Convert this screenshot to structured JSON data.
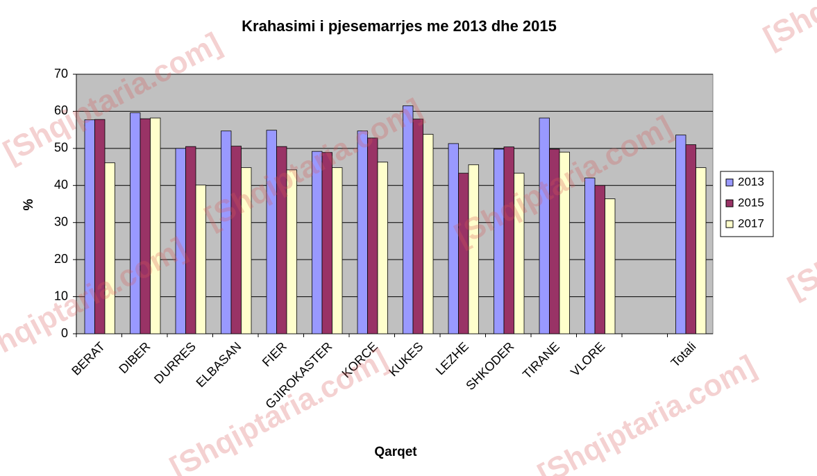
{
  "chart_data": {
    "type": "bar",
    "title": "Krahasimi i pjesemarrjes me 2013 dhe 2015",
    "x_label": "Qarqet",
    "y_label": "%",
    "categories": [
      "BERAT",
      "DIBER",
      "DURRES",
      "ELBASAN",
      "FIER",
      "GJIROKASTER",
      "KORCE",
      "KUKES",
      "LEZHE",
      "SHKODER",
      "TIRANE",
      "VLORE",
      null,
      "Totali"
    ],
    "series": [
      {
        "name": "2013",
        "color": "#9999ff",
        "values": [
          57.7,
          59.6,
          50,
          54.7,
          54.9,
          49.2,
          54.7,
          61.5,
          51.3,
          49.8,
          58.2,
          42,
          null,
          53.6
        ]
      },
      {
        "name": "2015",
        "color": "#993366",
        "values": [
          57.8,
          58,
          50.5,
          50.6,
          50.5,
          48.9,
          52.8,
          57.9,
          43.3,
          50.4,
          49.8,
          40,
          null,
          51
        ]
      },
      {
        "name": "2017",
        "color": "#ffffcc",
        "values": [
          46.1,
          58.2,
          40.1,
          44.8,
          44.2,
          44.8,
          46.3,
          53.8,
          45.6,
          43.3,
          49,
          36.4,
          null,
          44.8
        ]
      }
    ],
    "ylim": [
      0,
      70
    ],
    "yticks": [
      0,
      10,
      20,
      30,
      40,
      50,
      60,
      70
    ],
    "grid": true,
    "plot_background": "#c0c0c0",
    "legend_position": "right",
    "watermark": "[Shqiptaria.com]"
  }
}
